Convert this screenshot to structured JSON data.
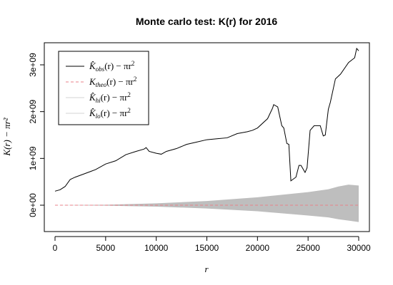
{
  "chart_data": {
    "type": "line",
    "title": "Monte carlo test: K(r) for 2016",
    "xlabel": "r",
    "ylabel": "K(r) − πr²",
    "xlim": [
      0,
      30000
    ],
    "ylim": [
      -500000000,
      3400000000
    ],
    "x_ticks": [
      0,
      5000,
      10000,
      15000,
      20000,
      25000,
      30000
    ],
    "x_tick_labels": [
      "0",
      "5000",
      "10000",
      "15000",
      "20000",
      "25000",
      "30000"
    ],
    "y_ticks": [
      0,
      1000000000,
      2000000000,
      3000000000
    ],
    "y_tick_labels": [
      "0e+00",
      "1e+09",
      "2e+09",
      "3e+09"
    ],
    "grid": false,
    "legend_position": "top-left",
    "series": [
      {
        "name": "K̂obs(r) − πr²",
        "color": "#000000",
        "style": "solid",
        "x": [
          0,
          500,
          1000,
          1500,
          2000,
          3000,
          4000,
          5000,
          6000,
          7000,
          8000,
          8800,
          9000,
          9300,
          10000,
          10500,
          11000,
          11500,
          12000,
          13000,
          14000,
          15000,
          16000,
          17000,
          18000,
          19000,
          19500,
          20000,
          21000,
          21500,
          21600,
          22000,
          22400,
          22600,
          22900,
          23100,
          23300,
          23800,
          24100,
          24300,
          24700,
          24900,
          25200,
          25600,
          26200,
          26500,
          26700,
          27000,
          27200,
          27500,
          27700,
          28200,
          29000,
          29600,
          29800,
          30000
        ],
        "values": [
          300000000,
          330000000,
          400000000,
          550000000,
          600000000,
          680000000,
          760000000,
          880000000,
          950000000,
          1080000000,
          1150000000,
          1200000000,
          1230000000,
          1150000000,
          1110000000,
          1090000000,
          1150000000,
          1180000000,
          1210000000,
          1300000000,
          1350000000,
          1400000000,
          1420000000,
          1440000000,
          1530000000,
          1570000000,
          1600000000,
          1650000000,
          1850000000,
          2080000000,
          2150000000,
          2100000000,
          1700000000,
          1650000000,
          1320000000,
          1300000000,
          520000000,
          600000000,
          850000000,
          850000000,
          700000000,
          800000000,
          1600000000,
          1700000000,
          1700000000,
          1480000000,
          1500000000,
          2050000000,
          2200000000,
          2500000000,
          2700000000,
          2800000000,
          3050000000,
          3150000000,
          3350000000,
          3300000000
        ]
      },
      {
        "name": "Ktheo(r) − πr²",
        "color": "#e8828a",
        "style": "dashed",
        "x": [
          0,
          30000
        ],
        "values": [
          0,
          0
        ]
      },
      {
        "name": "K̂hi(r) − πr²",
        "color": "#bebebe",
        "style": "band-upper",
        "x": [
          0,
          5000,
          10000,
          15000,
          20000,
          25000,
          27000,
          28000,
          29000,
          30000
        ],
        "values": [
          0,
          10000000,
          40000000,
          90000000,
          170000000,
          280000000,
          340000000,
          400000000,
          440000000,
          420000000
        ]
      },
      {
        "name": "K̂lo(r) − πr²",
        "color": "#bebebe",
        "style": "band-lower",
        "x": [
          0,
          5000,
          10000,
          15000,
          20000,
          25000,
          27000,
          28000,
          29000,
          30000
        ],
        "values": [
          0,
          -10000000,
          -30000000,
          -70000000,
          -130000000,
          -220000000,
          -260000000,
          -300000000,
          -330000000,
          -360000000
        ]
      }
    ],
    "legend": [
      {
        "main": "K̂",
        "sub": "obs",
        "rest": "(r) − πr",
        "sup": "2",
        "color": "#000000",
        "style": "solid"
      },
      {
        "main": "K",
        "sub": "theo",
        "rest": "(r) − πr",
        "sup": "2",
        "color": "#e8828a",
        "style": "dashed"
      },
      {
        "main": "K̂",
        "sub": "hi",
        "rest": "(r) − πr",
        "sup": "2",
        "color": "#d3d3d3",
        "style": "solid"
      },
      {
        "main": "K̂",
        "sub": "lo",
        "rest": "(r) − πr",
        "sup": "2",
        "color": "#d3d3d3",
        "style": "solid"
      }
    ]
  }
}
